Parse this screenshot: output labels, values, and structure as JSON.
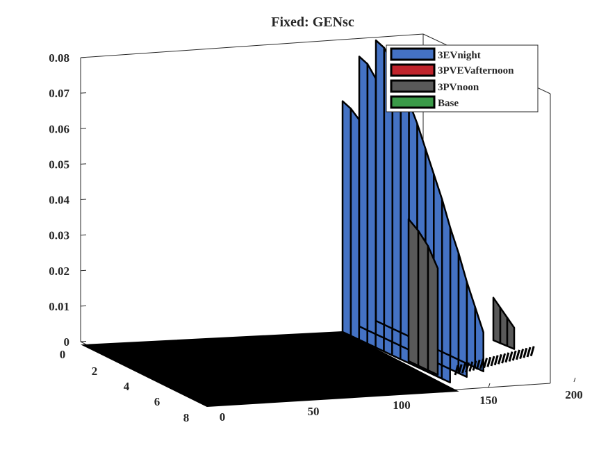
{
  "chart_data": {
    "type": "surface3d",
    "title": "Fixed: GENsc",
    "xlabel": "",
    "ylabel": "",
    "zlabel": "",
    "x_ticks": [
      0,
      50,
      100,
      150,
      200
    ],
    "y_ticks": [
      0,
      2,
      4,
      6,
      8
    ],
    "z_ticks": [
      0,
      0.01,
      0.02,
      0.03,
      0.04,
      0.05,
      0.06,
      0.07,
      0.08
    ],
    "x_tick_labels": [
      "0",
      "50",
      "100",
      "150",
      "200"
    ],
    "y_tick_labels": [
      "0",
      "2",
      "4",
      "6",
      "8"
    ],
    "z_tick_labels": [
      "0",
      "0.01",
      "0.02",
      "0.03",
      "0.04",
      "0.05",
      "0.06",
      "0.07",
      "0.08"
    ],
    "xlim": [
      0,
      200
    ],
    "ylim": [
      0,
      9
    ],
    "zlim": [
      0,
      0.08
    ],
    "grid": false,
    "legend_position": "top-right",
    "series": [
      {
        "name": "3EVnight",
        "color": "#4472C4",
        "ribbons": [
          {
            "x": [
              120,
              122,
              127,
              132,
              137,
              142,
              147,
              152,
              157,
              162,
              167,
              172,
              177,
              182
            ],
            "y": 0,
            "z": [
              0.065,
              0.064,
              0.062,
              0.058,
              0.054,
              0.05,
              0.046,
              0.042,
              0.037,
              0.032,
              0.027,
              0.021,
              0.015,
              0.01
            ]
          },
          {
            "x": [
              122,
              125,
              130,
              135,
              140,
              145,
              150,
              155,
              160,
              165,
              170,
              175,
              180,
              184
            ],
            "y": 0,
            "z": [
              0.076,
              0.075,
              0.072,
              0.068,
              0.063,
              0.058,
              0.053,
              0.047,
              0.041,
              0.035,
              0.029,
              0.022,
              0.016,
              0.011
            ]
          },
          {
            "x": [
              124,
              127,
              132,
              137,
              142,
              147,
              152,
              157,
              162,
              167,
              172,
              177,
              182,
              186
            ],
            "y": 0,
            "z": [
              0.079,
              0.078,
              0.075,
              0.071,
              0.066,
              0.061,
              0.055,
              0.049,
              0.043,
              0.036,
              0.03,
              0.023,
              0.017,
              0.011
            ]
          }
        ]
      },
      {
        "name": "3PVEVafternoon",
        "color": "#C0242C",
        "ribbons": [
          {
            "x": [
              165,
              168,
              171,
              174,
              177,
              180
            ],
            "y": 0,
            "z": [
              0.004,
              0.006,
              0.008,
              0.007,
              0.005,
              0.003
            ]
          }
        ]
      },
      {
        "name": "3PVnoon",
        "color": "#595959",
        "ribbons": [
          {
            "x": [
              150,
              152,
              156,
              160
            ],
            "y": 0,
            "z": [
              0.04,
              0.038,
              0.035,
              0.03
            ]
          },
          {
            "x": [
              170,
              172,
              175,
              178
            ],
            "y": 0,
            "z": [
              0.012,
              0.01,
              0.008,
              0.006
            ]
          }
        ]
      },
      {
        "name": "Base",
        "color": "#3A9A48",
        "ribbons": []
      }
    ]
  }
}
